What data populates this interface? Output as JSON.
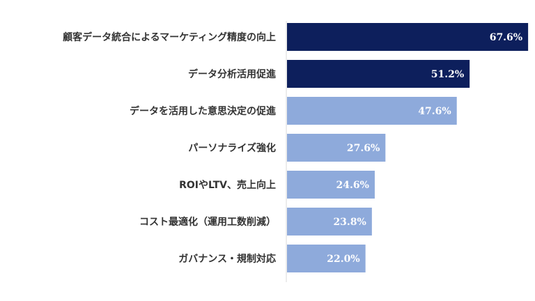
{
  "chart_data": {
    "type": "bar",
    "orientation": "horizontal",
    "categories": [
      "顧客データ統合によるマーケティング精度の向上",
      "データ分析活用促進",
      "データを活用した意思決定の促進",
      "パーソナライズ強化",
      "ROIやLTV、売上向上",
      "コスト最適化（運用工数削減）",
      "ガバナンス・規制対応"
    ],
    "values": [
      67.6,
      51.2,
      47.6,
      27.6,
      24.6,
      23.8,
      22.0
    ],
    "value_labels": [
      "67.6%",
      "51.2%",
      "47.6%",
      "27.6%",
      "24.6%",
      "23.8%",
      "22.0%"
    ],
    "highlight": [
      true,
      true,
      false,
      false,
      false,
      false,
      false
    ],
    "colors": {
      "highlight": "#0d1f5c",
      "normal": "#8eaadb",
      "axis": "#d9d9d9"
    },
    "title": "",
    "xlabel": "",
    "ylabel": "",
    "xlim": [
      0,
      70
    ],
    "grid": false
  }
}
